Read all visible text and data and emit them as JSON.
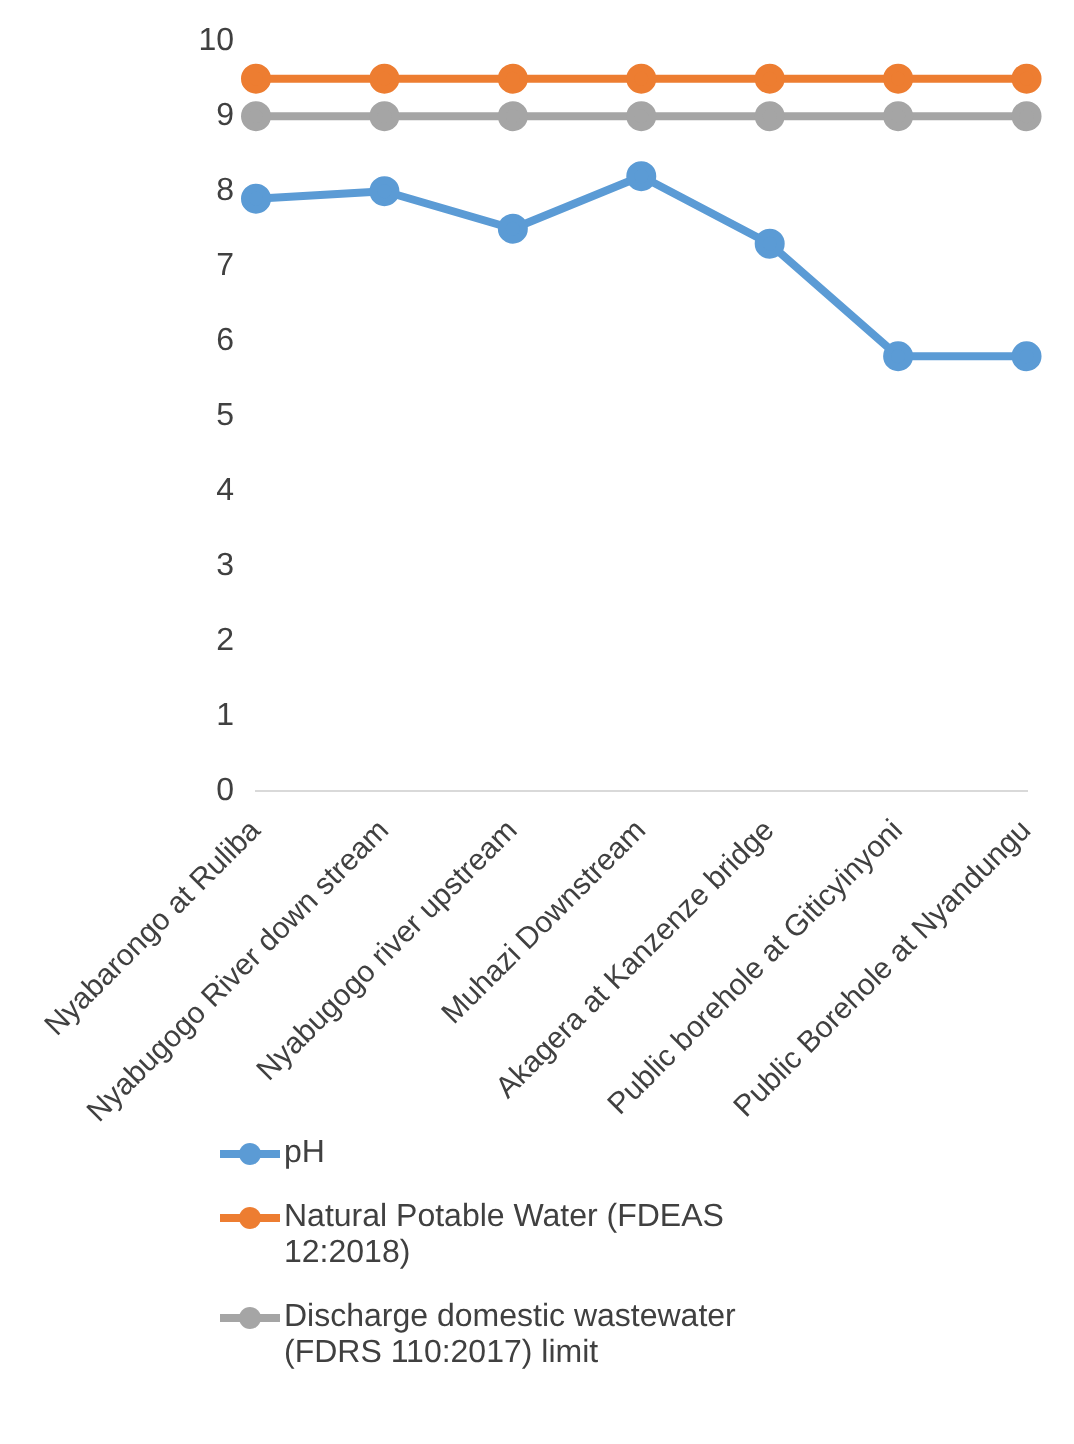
{
  "chart_data": {
    "type": "line",
    "categories": [
      "Nyabarongo at Ruliba",
      "Nyabugogo River down stream",
      "Nyabugogo river upstream",
      "Muhazi Downstream",
      "Akagera at Kanzenze bridge",
      "Public borehole at Giticyinyoni",
      "Public Borehole at Nyandungu"
    ],
    "series": [
      {
        "name": "pH",
        "color": "#5b9bd5",
        "values": [
          7.9,
          8.0,
          7.5,
          8.2,
          7.3,
          5.8,
          5.8
        ]
      },
      {
        "name": "Natural Potable Water (FDEAS 12:2018)",
        "color": "#ed7d31",
        "values": [
          9.5,
          9.5,
          9.5,
          9.5,
          9.5,
          9.5,
          9.5
        ]
      },
      {
        "name": "Discharge domestic wastewater (FDRS 110:2017) limit",
        "color": "#a5a5a5",
        "values": [
          9,
          9,
          9,
          9,
          9,
          9,
          9
        ]
      }
    ],
    "ylim": [
      0,
      10
    ],
    "yticks": [
      0,
      1,
      2,
      3,
      4,
      5,
      6,
      7,
      8,
      9,
      10
    ],
    "grid": false,
    "legend": "bottom",
    "marker": "circle",
    "line_style": "solid"
  }
}
